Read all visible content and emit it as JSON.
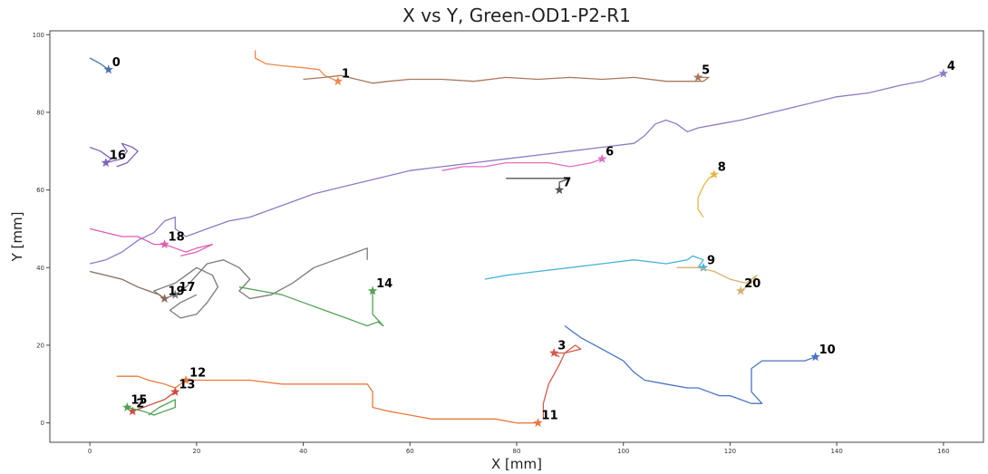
{
  "chart_data": {
    "type": "scatter",
    "title": "X vs Y, Green-OD1-P2-R1",
    "xlabel": "X [mm]",
    "ylabel": "Y [mm]",
    "xlim": [
      -7.5,
      167.5
    ],
    "ylim": [
      -5,
      101
    ],
    "xticks": [
      0,
      20,
      40,
      60,
      80,
      100,
      120,
      140,
      160
    ],
    "yticks": [
      0,
      20,
      40,
      60,
      80,
      100
    ],
    "grid": false,
    "legend": "none",
    "series": [
      {
        "label": "0",
        "color": "#4c72b0",
        "end": [
          3.5,
          91
        ],
        "points": [
          [
            0,
            94
          ],
          [
            2,
            92.5
          ],
          [
            3.5,
            91
          ]
        ]
      },
      {
        "label": "1",
        "color": "#ee8a4f",
        "end": [
          46.5,
          88
        ],
        "points": [
          [
            31,
            96
          ],
          [
            31,
            94
          ],
          [
            33,
            92.5
          ],
          [
            36,
            92
          ],
          [
            40,
            91.5
          ],
          [
            43,
            91
          ],
          [
            44,
            89.5
          ],
          [
            46.5,
            88
          ]
        ]
      },
      {
        "label": "5",
        "color": "#a9785c",
        "end": [
          114,
          89
        ],
        "points": [
          [
            40,
            88.5
          ],
          [
            44,
            89
          ],
          [
            47,
            89.5
          ],
          [
            50,
            88.5
          ],
          [
            53,
            87.5
          ],
          [
            56,
            88
          ],
          [
            60,
            88.5
          ],
          [
            66,
            88.5
          ],
          [
            72,
            88
          ],
          [
            78,
            89
          ],
          [
            84,
            88.5
          ],
          [
            90,
            89
          ],
          [
            96,
            88.5
          ],
          [
            102,
            89
          ],
          [
            108,
            88
          ],
          [
            112,
            88
          ],
          [
            115,
            88
          ],
          [
            116,
            89
          ],
          [
            114,
            89
          ]
        ]
      },
      {
        "label": "4",
        "color": "#8f7bc6",
        "end": [
          160,
          90
        ],
        "points": [
          [
            0,
            41
          ],
          [
            3,
            42
          ],
          [
            6,
            44
          ],
          [
            9,
            47
          ],
          [
            12,
            49
          ],
          [
            14,
            52
          ],
          [
            16,
            53
          ],
          [
            16,
            50
          ],
          [
            18,
            48
          ],
          [
            22,
            50
          ],
          [
            26,
            52
          ],
          [
            30,
            53
          ],
          [
            34,
            55
          ],
          [
            38,
            57
          ],
          [
            42,
            59
          ],
          [
            48,
            61
          ],
          [
            54,
            63
          ],
          [
            60,
            65
          ],
          [
            66,
            66
          ],
          [
            72,
            67
          ],
          [
            78,
            68
          ],
          [
            84,
            69
          ],
          [
            90,
            70
          ],
          [
            96,
            71
          ],
          [
            102,
            72
          ],
          [
            104,
            74
          ],
          [
            106,
            77
          ],
          [
            108,
            78
          ],
          [
            110,
            77
          ],
          [
            112,
            75
          ],
          [
            114,
            76
          ],
          [
            118,
            77
          ],
          [
            122,
            78
          ],
          [
            128,
            80
          ],
          [
            134,
            82
          ],
          [
            140,
            84
          ],
          [
            146,
            85
          ],
          [
            152,
            87
          ],
          [
            156,
            88
          ],
          [
            160,
            90
          ]
        ]
      },
      {
        "label": "16",
        "color": "#7f62b8",
        "end": [
          3,
          67
        ],
        "points": [
          [
            0,
            71
          ],
          [
            2,
            70
          ],
          [
            4,
            68
          ],
          [
            3,
            67
          ],
          [
            6,
            68
          ],
          [
            7,
            70
          ],
          [
            6,
            72
          ],
          [
            8,
            71
          ],
          [
            9,
            70
          ],
          [
            7,
            67
          ],
          [
            5,
            66
          ]
        ]
      },
      {
        "label": "6",
        "color": "#de6fc4",
        "end": [
          96,
          68
        ],
        "points": [
          [
            66,
            65
          ],
          [
            70,
            66
          ],
          [
            74,
            66
          ],
          [
            78,
            67
          ],
          [
            82,
            67
          ],
          [
            86,
            67
          ],
          [
            90,
            66
          ],
          [
            94,
            67
          ],
          [
            96,
            68
          ]
        ]
      },
      {
        "label": "7",
        "color": "#555555",
        "end": [
          88,
          60
        ],
        "points": [
          [
            78,
            63
          ],
          [
            82,
            63
          ],
          [
            86,
            63
          ],
          [
            90,
            63
          ],
          [
            88,
            62
          ],
          [
            88,
            60
          ]
        ]
      },
      {
        "label": "8",
        "color": "#e2b84a",
        "end": [
          117,
          64
        ],
        "points": [
          [
            115,
            53
          ],
          [
            114,
            55
          ],
          [
            114,
            58
          ],
          [
            115,
            61
          ],
          [
            116,
            63
          ],
          [
            117,
            64
          ]
        ]
      },
      {
        "label": "18",
        "color": "#dc5fb6",
        "end": [
          14,
          46
        ],
        "points": [
          [
            0,
            50
          ],
          [
            3,
            49
          ],
          [
            6,
            48
          ],
          [
            9,
            48
          ],
          [
            12,
            46
          ],
          [
            14,
            46
          ],
          [
            16,
            45
          ],
          [
            18,
            44
          ],
          [
            20,
            45
          ],
          [
            23,
            46
          ],
          [
            20,
            44
          ],
          [
            17,
            43
          ]
        ]
      },
      {
        "label": "9",
        "color": "#4ab3d8",
        "end": [
          115,
          40
        ],
        "points": [
          [
            74,
            37
          ],
          [
            78,
            38
          ],
          [
            84,
            39
          ],
          [
            90,
            40
          ],
          [
            96,
            41
          ],
          [
            102,
            42
          ],
          [
            108,
            41
          ],
          [
            112,
            42
          ],
          [
            113,
            43
          ],
          [
            115,
            42
          ],
          [
            114,
            40
          ],
          [
            115,
            40
          ]
        ]
      },
      {
        "label": "20",
        "color": "#d4b270",
        "end": [
          122,
          34
        ],
        "points": [
          [
            110,
            40
          ],
          [
            114,
            40
          ],
          [
            117,
            39
          ],
          [
            120,
            37
          ],
          [
            123,
            36
          ],
          [
            125,
            38
          ],
          [
            124,
            36
          ],
          [
            122,
            34
          ]
        ]
      },
      {
        "label": "17",
        "color": "#7a7a7a",
        "end": [
          16,
          33
        ],
        "points": [
          [
            20,
            33
          ],
          [
            17,
            31
          ],
          [
            15,
            29
          ],
          [
            17,
            27
          ],
          [
            20,
            28
          ],
          [
            22,
            31
          ],
          [
            24,
            35
          ],
          [
            23,
            38
          ],
          [
            20,
            40
          ],
          [
            18,
            38
          ],
          [
            16,
            36
          ],
          [
            14,
            35
          ],
          [
            12,
            34
          ],
          [
            14,
            32
          ],
          [
            16,
            33
          ],
          [
            18,
            35
          ],
          [
            20,
            38
          ],
          [
            22,
            41
          ],
          [
            25,
            42
          ],
          [
            28,
            40
          ],
          [
            30,
            37
          ],
          [
            28,
            34
          ],
          [
            30,
            32
          ],
          [
            34,
            33
          ],
          [
            38,
            36
          ],
          [
            42,
            40
          ],
          [
            46,
            42
          ],
          [
            50,
            44
          ],
          [
            52,
            45
          ],
          [
            52,
            42
          ]
        ]
      },
      {
        "label": "14",
        "color": "#55a257",
        "end": [
          53,
          34
        ],
        "points": [
          [
            28,
            35
          ],
          [
            32,
            34
          ],
          [
            36,
            33
          ],
          [
            40,
            31
          ],
          [
            44,
            29
          ],
          [
            48,
            27
          ],
          [
            50,
            26
          ],
          [
            52,
            25
          ],
          [
            54,
            26
          ],
          [
            55,
            25
          ],
          [
            53,
            28
          ],
          [
            53,
            31
          ],
          [
            53,
            34
          ]
        ]
      },
      {
        "label": "19",
        "color": "#8a6a5a",
        "end": [
          14,
          32
        ],
        "points": [
          [
            0,
            39
          ],
          [
            3,
            38
          ],
          [
            6,
            37
          ],
          [
            9,
            35
          ],
          [
            11,
            34
          ],
          [
            13,
            33
          ],
          [
            14,
            32
          ]
        ]
      },
      {
        "label": "3",
        "color": "#d45a4a",
        "end": [
          87,
          18
        ],
        "points": [
          [
            85,
            1
          ],
          [
            85,
            5
          ],
          [
            86,
            10
          ],
          [
            88,
            15
          ],
          [
            89,
            18
          ],
          [
            91,
            20
          ],
          [
            92,
            19
          ],
          [
            89,
            18
          ],
          [
            87,
            18
          ],
          [
            88,
            17
          ]
        ]
      },
      {
        "label": "10",
        "color": "#4a74c4",
        "end": [
          136,
          17
        ],
        "points": [
          [
            89,
            25
          ],
          [
            92,
            22
          ],
          [
            96,
            19
          ],
          [
            100,
            16
          ],
          [
            102,
            13
          ],
          [
            104,
            11
          ],
          [
            108,
            10
          ],
          [
            112,
            9
          ],
          [
            114,
            9
          ],
          [
            116,
            8
          ],
          [
            118,
            7
          ],
          [
            120,
            7
          ],
          [
            122,
            6
          ],
          [
            124,
            5
          ],
          [
            126,
            5
          ],
          [
            124,
            8
          ],
          [
            124,
            11
          ],
          [
            124,
            14
          ],
          [
            126,
            16
          ],
          [
            130,
            16
          ],
          [
            134,
            16
          ],
          [
            136,
            17
          ]
        ]
      },
      {
        "label": "12",
        "color": "#e97a40",
        "end": [
          18,
          11
        ],
        "points": [
          [
            5,
            12
          ],
          [
            9,
            12
          ],
          [
            11,
            11
          ],
          [
            14,
            10
          ],
          [
            16,
            9
          ],
          [
            18,
            11
          ],
          [
            24,
            11
          ],
          [
            30,
            11
          ],
          [
            36,
            10
          ],
          [
            42,
            10
          ],
          [
            48,
            10
          ],
          [
            52,
            10
          ],
          [
            53,
            8
          ],
          [
            53,
            4
          ],
          [
            56,
            3
          ],
          [
            60,
            2
          ],
          [
            64,
            1
          ],
          [
            70,
            1
          ],
          [
            76,
            1
          ],
          [
            80,
            0
          ],
          [
            84,
            0
          ]
        ]
      },
      {
        "label": "11",
        "color": "#e97a40",
        "end": [
          84,
          0
        ],
        "points": [
          [
            80,
            0
          ],
          [
            82,
            0
          ],
          [
            84,
            0
          ]
        ]
      },
      {
        "label": "13",
        "color": "#cf4b3f",
        "end": [
          16,
          8
        ],
        "points": [
          [
            8,
            3
          ],
          [
            10,
            4
          ],
          [
            12,
            5
          ],
          [
            14,
            6
          ],
          [
            16,
            8
          ]
        ]
      },
      {
        "label": "2",
        "color": "#cf4b3f",
        "end": [
          8,
          3
        ],
        "points": [
          [
            8,
            3
          ]
        ]
      },
      {
        "label": "15",
        "color": "#4fa153",
        "end": [
          7,
          4
        ],
        "points": [
          [
            7,
            4
          ],
          [
            10,
            3
          ],
          [
            12,
            2
          ],
          [
            14,
            3
          ],
          [
            16,
            4
          ],
          [
            16,
            6
          ],
          [
            13,
            4
          ],
          [
            11,
            2
          ]
        ]
      }
    ]
  }
}
